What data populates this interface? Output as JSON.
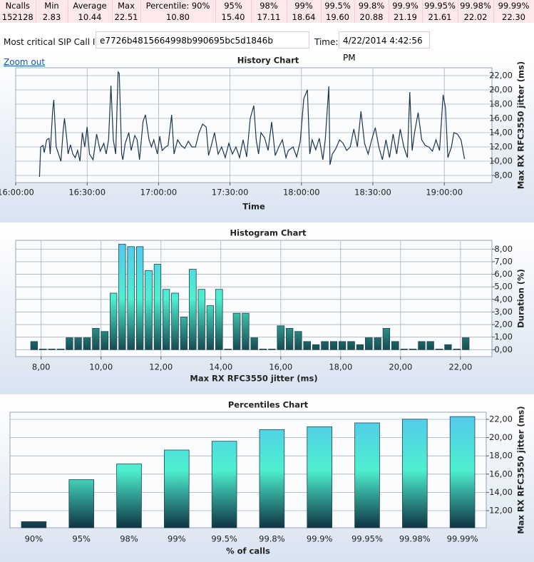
{
  "stats": {
    "headers": [
      "Ncalls",
      "Min",
      "Average",
      "Max",
      "Percentile: 90%",
      "95%",
      "98%",
      "99%",
      "99.5%",
      "99.8%",
      "99.9%",
      "99.95%",
      "99.98%",
      "99.99%"
    ],
    "values": [
      "152128",
      "2.83",
      "10.44",
      "22.51",
      "10.80",
      "15.40",
      "17.11",
      "18.64",
      "19.60",
      "20.88",
      "21.19",
      "21.61",
      "22.02",
      "22.30"
    ]
  },
  "call_id": {
    "label": "Most critical SIP Call ID:",
    "value": "e7726b4815664998b990695bc5d1846b"
  },
  "time": {
    "label": "Time:",
    "value": "4/22/2014 4:42:56 PM"
  },
  "zoom_out": "Zoom out",
  "chart_data": [
    {
      "type": "line",
      "title": "History Chart",
      "x_label": "Time",
      "y_label": "Max RX RFC3550 jitter (ms)",
      "color": "#1c3550",
      "grid": true,
      "x": [
        "16:10:00",
        "16:10:30",
        "16:11:30",
        "16:12:00",
        "16:13:00",
        "16:14:00",
        "16:14:30",
        "16:15:30",
        "16:16:00",
        "16:17:00",
        "16:18:00",
        "16:19:00",
        "16:20:00",
        "16:20:30",
        "16:21:30",
        "16:22:00",
        "16:23:00",
        "16:24:00",
        "16:25:00",
        "16:26:00",
        "16:27:00",
        "16:28:00",
        "16:29:00",
        "16:30:00",
        "16:31:00",
        "16:32:30",
        "16:34:00",
        "16:35:30",
        "16:37:00",
        "16:38:00",
        "16:39:00",
        "16:40:00",
        "16:41:00",
        "16:42:00",
        "16:43:00",
        "16:43:30",
        "16:44:30",
        "16:45:00",
        "16:46:00",
        "16:47:30",
        "16:48:30",
        "16:50:00",
        "16:51:00",
        "16:52:00",
        "16:53:30",
        "16:54:30",
        "16:56:00",
        "16:57:00",
        "16:58:00",
        "16:59:30",
        "17:00:30",
        "17:01:30",
        "17:03:00",
        "17:04:00",
        "17:05:30",
        "17:06:30",
        "17:08:00",
        "17:09:30",
        "17:11:00",
        "17:12:30",
        "17:14:00",
        "17:15:30",
        "17:17:00",
        "17:18:30",
        "17:20:00",
        "17:21:00",
        "17:22:00",
        "17:23:30",
        "17:25:00",
        "17:26:30",
        "17:28:00",
        "17:29:30",
        "17:31:00",
        "17:32:30",
        "17:34:00",
        "17:35:30",
        "17:37:00",
        "17:38:30",
        "17:40:00",
        "17:41:00",
        "17:42:00",
        "17:43:00",
        "17:44:30",
        "17:46:00",
        "17:47:30",
        "17:49:00",
        "17:50:30",
        "17:52:00",
        "17:53:30",
        "17:54:30",
        "17:56:30",
        "17:58:00",
        "17:59:30",
        "18:01:00",
        "18:02:30",
        "18:03:30",
        "18:04:30",
        "18:06:00",
        "18:07:30",
        "18:09:00",
        "18:10:00",
        "18:11:30",
        "18:12:00",
        "18:13:00",
        "18:14:30",
        "18:16:00",
        "18:17:30",
        "18:19:00",
        "18:20:30",
        "18:22:00",
        "18:23:30",
        "18:25:00",
        "18:26:30",
        "18:28:00",
        "18:29:30",
        "18:31:00",
        "18:32:30",
        "18:34:00",
        "18:35:30",
        "18:37:00",
        "18:38:30",
        "18:40:00",
        "18:41:30",
        "18:43:00",
        "18:44:30",
        "18:45:30",
        "18:46:30",
        "18:47:30",
        "18:49:00",
        "18:50:30",
        "18:52:00",
        "18:53:30",
        "18:55:00",
        "18:56:30",
        "18:58:00",
        "18:59:30",
        "19:00:30",
        "19:01:30",
        "19:03:00",
        "19:04:00",
        "19:05:30",
        "19:07:00",
        "19:08:30"
      ],
      "values": [
        7.8,
        12,
        12.2,
        11.2,
        13,
        13.2,
        11,
        17,
        18.6,
        12,
        11,
        10,
        14.5,
        16,
        13,
        11,
        12.3,
        11,
        10.5,
        11.5,
        10,
        14,
        12,
        14.8,
        11,
        10.2,
        13.8,
        11.4,
        12.5,
        11,
        13,
        20.6,
        13,
        11,
        22.5,
        22.3,
        11,
        10.2,
        12.5,
        14,
        11.5,
        13.6,
        13,
        10.2,
        15.6,
        16.5,
        13,
        12,
        13,
        11,
        13.5,
        11.5,
        12,
        12.2,
        16.5,
        11,
        13,
        12.2,
        11.8,
        12.8,
        12,
        12,
        14,
        15.2,
        14.8,
        10.8,
        12,
        14,
        11,
        12,
        10.5,
        12.5,
        11,
        12,
        10.5,
        13,
        10.6,
        16,
        17.8,
        13,
        11,
        14,
        13.3,
        11.5,
        15.5,
        10.8,
        12,
        13,
        10.5,
        11.5,
        12,
        10.6,
        12.8,
        18.8,
        20,
        11,
        13,
        11.6,
        13.2,
        10.2,
        13,
        20.5,
        9.5,
        11,
        11.8,
        13,
        12.5,
        11.5,
        12,
        14.5,
        12,
        17,
        12.5,
        11,
        13,
        14.7,
        12,
        10.2,
        13,
        10.5,
        13.8,
        11,
        14.5,
        12,
        10.5,
        19.7,
        11.5,
        14,
        16.8,
        13,
        12.2,
        12,
        11.4,
        13,
        11.5,
        19.3,
        17.5,
        10.5,
        12,
        14,
        13.8,
        13,
        10.3
      ],
      "xlim": [
        "16:00:00",
        "19:20:00"
      ],
      "xticks": [
        "16:00:00",
        "16:30:00",
        "17:00:00",
        "17:30:00",
        "18:00:00",
        "18:30:00",
        "19:00:00"
      ],
      "ylim": [
        7,
        23.1
      ],
      "yticks": [
        {
          "value": 8,
          "label": "8,00"
        },
        {
          "value": 10,
          "label": "10,00"
        },
        {
          "value": 12,
          "label": "12,00"
        },
        {
          "value": 14,
          "label": "14,00"
        },
        {
          "value": 16,
          "label": "16,00"
        },
        {
          "value": 18,
          "label": "18,00"
        },
        {
          "value": 20,
          "label": "20,00"
        },
        {
          "value": 22,
          "label": "22,00"
        }
      ]
    },
    {
      "type": "histogram",
      "title": "Histogram Chart",
      "x_label": "Max RX RFC3550 jitter (ms)",
      "y_label": "Duration (%)",
      "gradient": [
        "#55c6ef",
        "#4df0cf",
        "#0f3442"
      ],
      "grid": true,
      "bins": [
        7.62,
        7.91,
        8.21,
        8.5,
        8.8,
        9.09,
        9.38,
        9.68,
        9.97,
        10.27,
        10.56,
        10.85,
        11.15,
        11.44,
        11.74,
        12.03,
        12.32,
        12.62,
        12.91,
        13.21,
        13.5,
        13.79,
        14.09,
        14.38,
        14.68,
        14.97,
        15.26,
        15.56,
        15.85,
        16.15,
        16.44,
        16.73,
        17.03,
        17.32,
        17.62,
        17.91,
        18.2,
        18.5,
        18.79,
        19.09,
        19.38,
        19.67,
        19.97,
        20.26,
        20.56,
        20.85,
        21.14,
        21.44,
        21.73,
        22.03,
        22.32
      ],
      "values": [
        0.65,
        0.05,
        0.05,
        0.05,
        0.95,
        0.95,
        0.95,
        1.7,
        1.45,
        4.5,
        8.4,
        8.2,
        8.2,
        6.3,
        6.8,
        4.8,
        4.5,
        2.6,
        6.4,
        4.8,
        3.5,
        4.8,
        0.05,
        2.9,
        2.9,
        0.95,
        0.05,
        0.05,
        1.9,
        1.7,
        1.45,
        0.65,
        0.4,
        0.65,
        0.65,
        0.65,
        0.65,
        0.4,
        0.95,
        0.95,
        1.7,
        0.65,
        0.05,
        0.05,
        0.65,
        0.65,
        0.05,
        0.4,
        0.05,
        0.95
      ],
      "xlim": [
        7.15,
        23.05
      ],
      "xticks": [
        {
          "value": 8,
          "label": "8,00"
        },
        {
          "value": 10,
          "label": "10,00"
        },
        {
          "value": 12,
          "label": "12,00"
        },
        {
          "value": 14,
          "label": "14,00"
        },
        {
          "value": 16,
          "label": "16,00"
        },
        {
          "value": 18,
          "label": "18,00"
        },
        {
          "value": 20,
          "label": "20,00"
        },
        {
          "value": 22,
          "label": "22,00"
        }
      ],
      "ylim": [
        -0.55,
        8.7
      ],
      "yticks": [
        {
          "value": 0,
          "label": "0,00"
        },
        {
          "value": 1,
          "label": "1,00"
        },
        {
          "value": 2,
          "label": "2,00"
        },
        {
          "value": 3,
          "label": "3,00"
        },
        {
          "value": 4,
          "label": "4,00"
        },
        {
          "value": 5,
          "label": "5,00"
        },
        {
          "value": 6,
          "label": "6,00"
        },
        {
          "value": 7,
          "label": "7,00"
        },
        {
          "value": 8,
          "label": "8,00"
        }
      ]
    },
    {
      "type": "bar",
      "title": "Percentiles Chart",
      "x_label": "% of calls",
      "y_label": "Max RX RFC3550 jitter (ms)",
      "gradient": [
        "#55c6ef",
        "#4df0cf",
        "#0f3442"
      ],
      "grid": true,
      "categories": [
        "90%",
        "95%",
        "98%",
        "99%",
        "99.5%",
        "99.8%",
        "99.9%",
        "99.95%",
        "99.98%",
        "99.99%"
      ],
      "values": [
        10.8,
        15.4,
        17.11,
        18.64,
        19.6,
        20.88,
        21.19,
        21.61,
        22.02,
        22.3
      ],
      "ylim": [
        10.125,
        22.78
      ],
      "yticks": [
        {
          "value": 12,
          "label": "12,00"
        },
        {
          "value": 14,
          "label": "14,00"
        },
        {
          "value": 16,
          "label": "16,00"
        },
        {
          "value": 18,
          "label": "18,00"
        },
        {
          "value": 20,
          "label": "20,00"
        },
        {
          "value": 22,
          "label": "22,00"
        }
      ]
    }
  ]
}
